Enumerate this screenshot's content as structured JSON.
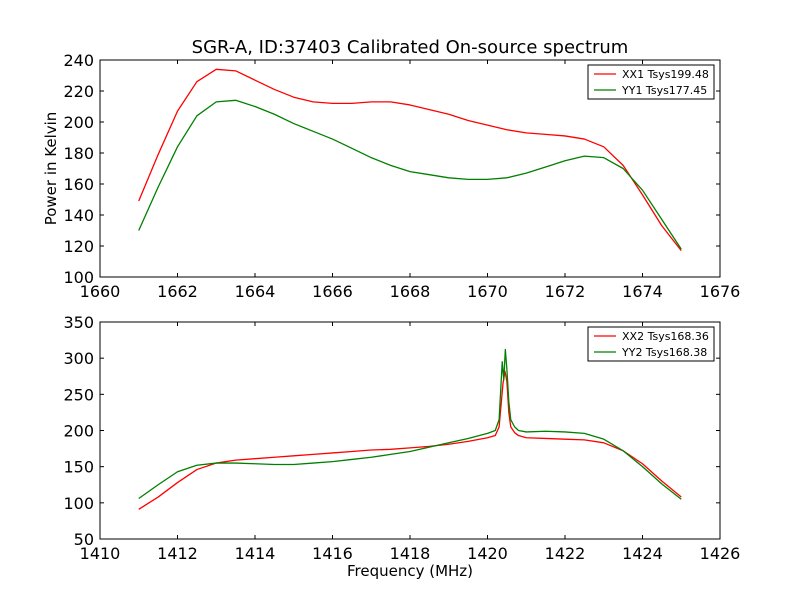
{
  "figure": {
    "title": "SGR-A, ID:37403 Calibrated On-source spectrum"
  },
  "chart_data": [
    {
      "type": "line",
      "title": "SGR-A, ID:37403 Calibrated On-source spectrum",
      "xlabel": "",
      "ylabel": "Power in Kelvin",
      "xlim": [
        1660,
        1676
      ],
      "ylim": [
        100,
        240
      ],
      "xticks": [
        1660,
        1662,
        1664,
        1666,
        1668,
        1670,
        1672,
        1674,
        1676
      ],
      "yticks": [
        100,
        120,
        140,
        160,
        180,
        200,
        220,
        240
      ],
      "grid": false,
      "legend_position": "top-right",
      "series": [
        {
          "name": "XX1 Tsys199.48",
          "color": "#ff0000",
          "x": [
            1661.0,
            1661.5,
            1662.0,
            1662.5,
            1663.0,
            1663.5,
            1664.0,
            1664.5,
            1665.0,
            1665.5,
            1666.0,
            1666.5,
            1667.0,
            1667.5,
            1668.0,
            1668.5,
            1669.0,
            1669.5,
            1670.0,
            1670.5,
            1671.0,
            1671.5,
            1672.0,
            1672.5,
            1673.0,
            1673.5,
            1674.0,
            1674.5,
            1675.0
          ],
          "y": [
            149,
            179,
            207,
            226,
            234,
            233,
            227,
            221,
            216,
            213,
            212,
            212,
            213,
            213,
            211,
            208,
            205,
            201,
            198,
            195,
            193,
            192,
            191,
            189,
            184,
            172,
            153,
            133,
            117
          ]
        },
        {
          "name": "YY1 Tsys177.45",
          "color": "#008000",
          "x": [
            1661.0,
            1661.5,
            1662.0,
            1662.5,
            1663.0,
            1663.5,
            1664.0,
            1664.5,
            1665.0,
            1665.5,
            1666.0,
            1666.5,
            1667.0,
            1667.5,
            1668.0,
            1668.5,
            1669.0,
            1669.5,
            1670.0,
            1670.5,
            1671.0,
            1671.5,
            1672.0,
            1672.5,
            1673.0,
            1673.5,
            1674.0,
            1674.5,
            1675.0
          ],
          "y": [
            130,
            158,
            184,
            204,
            213,
            214,
            210,
            205,
            199,
            194,
            189,
            183,
            177,
            172,
            168,
            166,
            164,
            163,
            163,
            164,
            167,
            171,
            175,
            178,
            177,
            170,
            156,
            137,
            118
          ]
        }
      ]
    },
    {
      "type": "line",
      "title": "",
      "xlabel": "Frequency (MHz)",
      "ylabel": "",
      "xlim": [
        1410,
        1426
      ],
      "ylim": [
        50,
        350
      ],
      "xticks": [
        1410,
        1412,
        1414,
        1416,
        1418,
        1420,
        1422,
        1424,
        1426
      ],
      "yticks": [
        50,
        100,
        150,
        200,
        250,
        300,
        350
      ],
      "grid": false,
      "legend_position": "top-right",
      "series": [
        {
          "name": "XX2 Tsys168.36",
          "color": "#ff0000",
          "x": [
            1411.0,
            1411.5,
            1412.0,
            1412.5,
            1413.0,
            1413.5,
            1414.0,
            1414.5,
            1415.0,
            1415.5,
            1416.0,
            1416.5,
            1417.0,
            1417.5,
            1418.0,
            1418.5,
            1419.0,
            1419.5,
            1420.0,
            1420.2,
            1420.3,
            1420.4,
            1420.45,
            1420.5,
            1420.55,
            1420.6,
            1420.7,
            1420.8,
            1421.0,
            1421.5,
            1422.0,
            1422.5,
            1423.0,
            1423.5,
            1424.0,
            1424.5,
            1425.0
          ],
          "y": [
            91,
            108,
            128,
            146,
            155,
            159,
            161,
            163,
            165,
            167,
            169,
            171,
            173,
            174,
            176,
            178,
            181,
            185,
            190,
            193,
            205,
            265,
            282,
            268,
            225,
            205,
            197,
            193,
            190,
            189,
            188,
            187,
            183,
            172,
            154,
            130,
            108
          ]
        },
        {
          "name": "YY2 Tsys168.38",
          "color": "#008000",
          "x": [
            1411.0,
            1411.5,
            1412.0,
            1412.5,
            1413.0,
            1413.5,
            1414.0,
            1414.5,
            1415.0,
            1415.5,
            1416.0,
            1416.5,
            1417.0,
            1417.5,
            1418.0,
            1418.5,
            1419.0,
            1419.5,
            1420.0,
            1420.2,
            1420.3,
            1420.38,
            1420.42,
            1420.46,
            1420.5,
            1420.55,
            1420.6,
            1420.7,
            1420.8,
            1421.0,
            1421.5,
            1422.0,
            1422.5,
            1423.0,
            1423.5,
            1424.0,
            1424.5,
            1425.0
          ],
          "y": [
            106,
            125,
            143,
            152,
            155,
            155,
            154,
            153,
            153,
            155,
            157,
            160,
            163,
            167,
            171,
            177,
            183,
            189,
            196,
            200,
            215,
            295,
            270,
            312,
            285,
            240,
            215,
            205,
            200,
            198,
            199,
            198,
            196,
            188,
            172,
            150,
            126,
            105
          ]
        }
      ]
    }
  ]
}
